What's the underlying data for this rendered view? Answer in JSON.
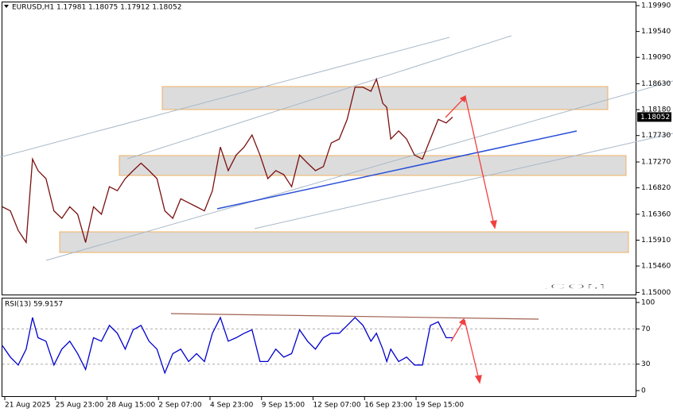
{
  "chart_data": [
    {
      "type": "line",
      "title": "EURUSD,H1  1.17981 1.18075 1.17912 1.18052",
      "color": "#7a1010",
      "x": [
        0,
        10,
        20,
        30,
        38,
        45,
        55,
        65,
        75,
        85,
        95,
        105,
        115,
        125,
        135,
        145,
        155,
        165,
        175,
        185,
        195,
        205,
        215,
        225,
        235,
        245,
        255,
        265,
        275,
        285,
        295,
        305,
        315,
        325,
        335,
        345,
        355,
        365,
        375,
        385,
        395,
        405,
        415,
        425,
        435,
        445,
        455,
        465,
        472,
        480,
        485,
        490,
        500,
        510,
        520,
        530,
        540,
        550,
        560,
        568
      ],
      "values": [
        1.1649,
        1.1642,
        1.1608,
        1.1587,
        1.1732,
        1.1712,
        1.1698,
        1.1642,
        1.1629,
        1.1649,
        1.1636,
        1.1587,
        1.1649,
        1.1636,
        1.1684,
        1.1677,
        1.1698,
        1.1712,
        1.1725,
        1.1712,
        1.1698,
        1.1642,
        1.1629,
        1.1663,
        1.1656,
        1.1649,
        1.1642,
        1.1677,
        1.1753,
        1.1712,
        1.1739,
        1.1753,
        1.1774,
        1.1739,
        1.1698,
        1.1712,
        1.1705,
        1.1684,
        1.1739,
        1.1725,
        1.1712,
        1.1719,
        1.176,
        1.1767,
        1.1801,
        1.1857,
        1.1857,
        1.185,
        1.1871,
        1.1829,
        1.1822,
        1.1767,
        1.1781,
        1.1767,
        1.1739,
        1.1732,
        1.1767,
        1.1801,
        1.1795,
        1.1805
      ],
      "xlim": [
        0,
        800
      ],
      "ylim": [
        1.1495,
        1.2006
      ],
      "yticks": [
        {
          "value": 1.1999,
          "label": "1.19990"
        },
        {
          "value": 1.1954,
          "label": "1.19540"
        },
        {
          "value": 1.1909,
          "label": "1.19090"
        },
        {
          "value": 1.1863,
          "label": "1.18630"
        },
        {
          "value": 1.1818,
          "label": "1.18180"
        },
        {
          "value": 1.1773,
          "label": "1.17730"
        },
        {
          "value": 1.1727,
          "label": "1.17270"
        },
        {
          "value": 1.1682,
          "label": "1.16820"
        },
        {
          "value": 1.1636,
          "label": "1.16360"
        },
        {
          "value": 1.1591,
          "label": "1.15910"
        },
        {
          "value": 1.1546,
          "label": "1.15460"
        },
        {
          "value": 1.15,
          "label": "1.15000"
        }
      ],
      "last_price": {
        "value": 1.18052,
        "label": "1.18052"
      },
      "watermark": [
        "BEL",
        "INVESTOR",
        ".COM"
      ]
    },
    {
      "type": "line",
      "title": "RSI(13) 59.9157",
      "color": "#0000cc",
      "x": [
        0,
        10,
        20,
        30,
        38,
        45,
        55,
        65,
        75,
        85,
        95,
        105,
        115,
        125,
        135,
        145,
        155,
        165,
        175,
        185,
        195,
        205,
        215,
        225,
        235,
        245,
        255,
        265,
        275,
        285,
        295,
        305,
        315,
        325,
        335,
        345,
        355,
        365,
        375,
        385,
        395,
        405,
        415,
        425,
        435,
        445,
        455,
        465,
        472,
        480,
        485,
        490,
        500,
        510,
        520,
        530,
        540,
        550,
        560,
        568
      ],
      "values": [
        51,
        38,
        29,
        47,
        83,
        60,
        56,
        29,
        47,
        56,
        42,
        24,
        60,
        56,
        74,
        65,
        47,
        69,
        74,
        56,
        47,
        20,
        42,
        47,
        33,
        42,
        33,
        65,
        83,
        56,
        60,
        65,
        69,
        33,
        33,
        47,
        38,
        42,
        69,
        56,
        47,
        60,
        65,
        65,
        74,
        83,
        74,
        56,
        65,
        47,
        33,
        47,
        33,
        38,
        29,
        29,
        74,
        78,
        60,
        60
      ],
      "xlim": [
        0,
        800
      ],
      "ylim": [
        -7.2,
        105.4
      ],
      "yticks": [
        100,
        70,
        30,
        0
      ],
      "levels": [
        70,
        30
      ],
      "xticks": [
        {
          "value": 3,
          "label": "21 Aug 2025"
        },
        {
          "value": 67,
          "label": "25 Aug 23:00"
        },
        {
          "value": 132,
          "label": "28 Aug 15:00"
        },
        {
          "value": 197,
          "label": "2 Sep 07:00"
        },
        {
          "value": 262,
          "label": "4 Sep 23:00"
        },
        {
          "value": 327,
          "label": "9 Sep 15:00"
        },
        {
          "value": 392,
          "label": "12 Sep 07:00"
        },
        {
          "value": 457,
          "label": "16 Sep 23:00"
        },
        {
          "value": 522,
          "label": "19 Sep 15:00"
        }
      ]
    }
  ]
}
